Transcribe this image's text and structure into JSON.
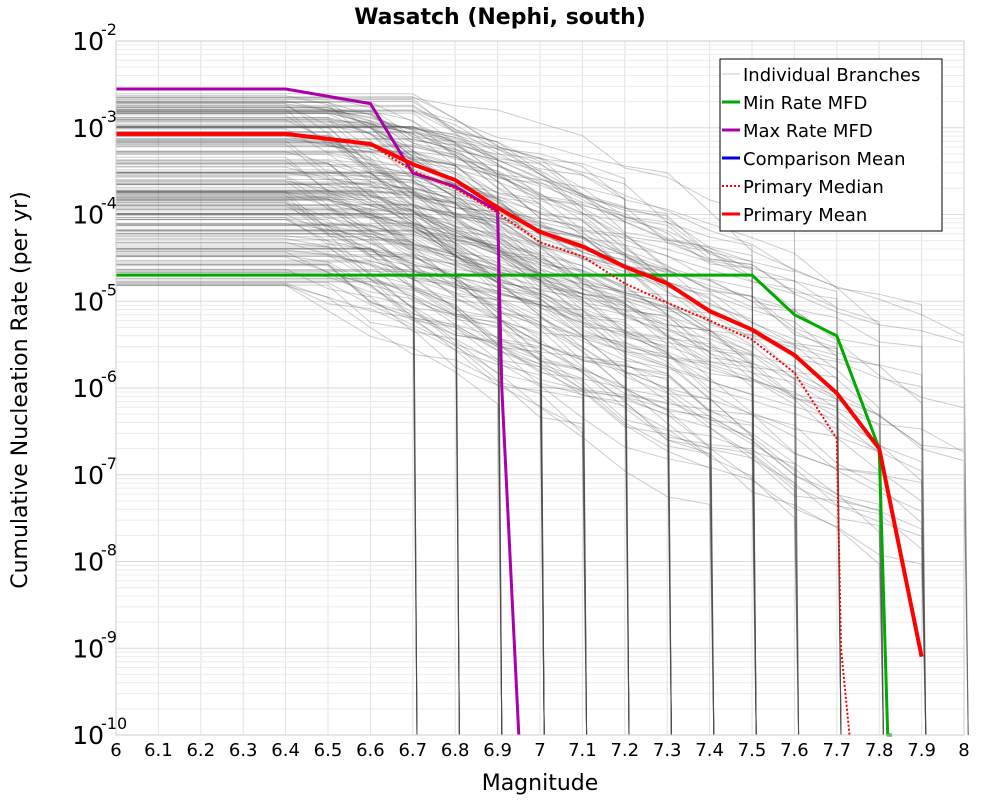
{
  "chart_data": {
    "type": "line",
    "title": "Wasatch (Nephi, south)",
    "xlabel": "Magnitude",
    "ylabel": "Cumulative Nucleation Rate (per yr)",
    "xlim": [
      6,
      8
    ],
    "ylim": [
      1e-10,
      0.01
    ],
    "yscale": "log",
    "grid": true,
    "legend_position": "top-right",
    "x_ticks": [
      "6",
      "6.1",
      "6.2",
      "6.3",
      "6.4",
      "6.5",
      "6.6",
      "6.7",
      "6.8",
      "6.9",
      "7",
      "7.1",
      "7.2",
      "7.3",
      "7.4",
      "7.5",
      "7.6",
      "7.7",
      "7.8",
      "7.9",
      "8"
    ],
    "y_ticks": [
      {
        "base": "10",
        "exp": "-2"
      },
      {
        "base": "10",
        "exp": "-3"
      },
      {
        "base": "10",
        "exp": "-4"
      },
      {
        "base": "10",
        "exp": "-5"
      },
      {
        "base": "10",
        "exp": "-6"
      },
      {
        "base": "10",
        "exp": "-7"
      },
      {
        "base": "10",
        "exp": "-8"
      },
      {
        "base": "10",
        "exp": "-9"
      },
      {
        "base": "10",
        "exp": "-10"
      }
    ],
    "legend": [
      {
        "label": "Individual Branches",
        "color": "#c8c8c8",
        "style": "solid"
      },
      {
        "label": "Min Rate MFD",
        "color": "#00aa00",
        "style": "solid"
      },
      {
        "label": "Max Rate MFD",
        "color": "#aa00aa",
        "style": "solid"
      },
      {
        "label": "Comparison Mean",
        "color": "#0000dd",
        "style": "solid"
      },
      {
        "label": "Primary Median",
        "color": "#ff0000",
        "style": "dotted"
      },
      {
        "label": "Primary Mean",
        "color": "#ff0000",
        "style": "solid"
      }
    ],
    "series": [
      {
        "name": "Min Rate MFD",
        "color": "#00aa00",
        "x": [
          6.0,
          7.5,
          7.6,
          7.7,
          7.8,
          7.82,
          7.83
        ],
        "y": [
          2e-05,
          2e-05,
          7e-06,
          4e-06,
          2e-07,
          1e-10,
          1e-10
        ]
      },
      {
        "name": "Max Rate MFD",
        "color": "#aa00aa",
        "x": [
          6.0,
          6.4,
          6.6,
          6.7,
          6.8,
          6.9,
          6.91,
          6.95
        ],
        "y": [
          0.0028,
          0.0028,
          0.0019,
          0.0003,
          0.00021,
          0.00011,
          1e-06,
          1e-10
        ]
      },
      {
        "name": "Primary Median",
        "color": "#ff0000",
        "x": [
          6.0,
          6.4,
          6.6,
          6.7,
          6.8,
          6.9,
          7.0,
          7.1,
          7.2,
          7.3,
          7.4,
          7.5,
          7.6,
          7.7,
          7.71,
          7.73
        ],
        "y": [
          0.00085,
          0.00085,
          0.00064,
          0.00032,
          0.0002,
          0.000105,
          4.8e-05,
          3.3e-05,
          1.6e-05,
          9.6e-06,
          6e-06,
          3.6e-06,
          1.5e-06,
          2.6e-07,
          1e-09,
          1e-10
        ]
      },
      {
        "name": "Primary Mean",
        "color": "#ff0000",
        "x": [
          6.0,
          6.4,
          6.6,
          6.7,
          6.8,
          6.9,
          7.0,
          7.1,
          7.2,
          7.3,
          7.4,
          7.5,
          7.6,
          7.7,
          7.8,
          7.9
        ],
        "y": [
          0.00085,
          0.00085,
          0.00065,
          0.00038,
          0.00025,
          0.00012,
          6.3e-05,
          4.3e-05,
          2.5e-05,
          1.6e-05,
          7.7e-06,
          4.7e-06,
          2.4e-06,
          8.7e-07,
          2e-07,
          8e-10
        ]
      }
    ]
  }
}
